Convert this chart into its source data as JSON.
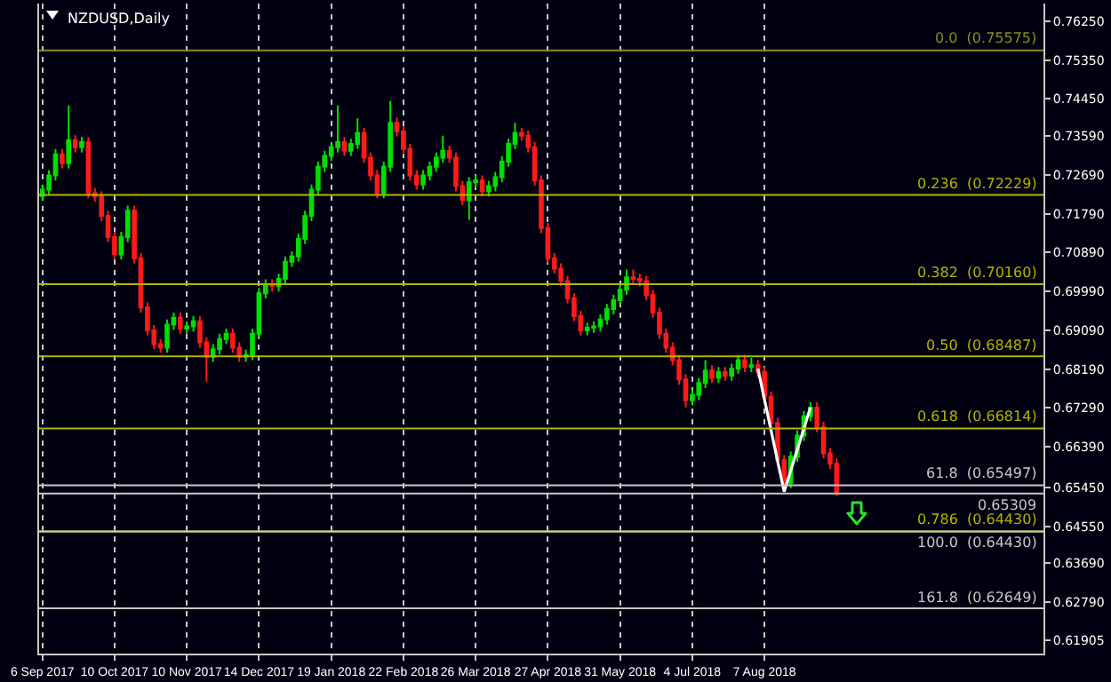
{
  "chart_data": {
    "type": "candlestick",
    "title": "NZDUSD,Daily",
    "categories": [
      "6 Sep 2017",
      null,
      null,
      null,
      null,
      null,
      null,
      null,
      null,
      null,
      null,
      "10 Oct 2017",
      null,
      null,
      null,
      null,
      null,
      null,
      null,
      null,
      null,
      null,
      "10 Nov 2017",
      null,
      null,
      null,
      null,
      null,
      null,
      null,
      null,
      null,
      null,
      "14 Dec 2017",
      null,
      null,
      null,
      null,
      null,
      null,
      null,
      null,
      null,
      null,
      "19 Jan 2018",
      null,
      null,
      null,
      null,
      null,
      null,
      null,
      null,
      null,
      null,
      "22 Feb 2018",
      null,
      null,
      null,
      null,
      null,
      null,
      null,
      null,
      null,
      null,
      "26 Mar 2018",
      null,
      null,
      null,
      null,
      null,
      null,
      null,
      null,
      null,
      null,
      "27 Apr 2018",
      null,
      null,
      null,
      null,
      null,
      null,
      null,
      null,
      null,
      null,
      "31 May 2018",
      null,
      null,
      null,
      null,
      null,
      null,
      null,
      null,
      null,
      null,
      "4 Jul 2018",
      null,
      null,
      null,
      null,
      null,
      null,
      null,
      null,
      null,
      null,
      "7 Aug 2018",
      null,
      null,
      null,
      null,
      null,
      null,
      null,
      null,
      null,
      null,
      null,
      null,
      null,
      null,
      null,
      null,
      null,
      null,
      null,
      null,
      null,
      null,
      null,
      null,
      null,
      null,
      null,
      null,
      null,
      null,
      null,
      null,
      null,
      null,
      null,
      null,
      null,
      null,
      null,
      null,
      null,
      null
    ],
    "ohlc": [
      [
        0.722,
        0.7247,
        0.7208,
        0.7235
      ],
      [
        0.7235,
        0.728,
        0.7223,
        0.7268
      ],
      [
        0.7268,
        0.7329,
        0.7256,
        0.7317
      ],
      [
        0.7317,
        0.7329,
        0.7284,
        0.7296
      ],
      [
        0.7296,
        0.743,
        0.7284,
        0.7349
      ],
      [
        0.7349,
        0.7361,
        0.7321,
        0.7333
      ],
      [
        0.7333,
        0.7357,
        0.7321,
        0.7345
      ],
      [
        0.7345,
        0.7357,
        0.7215,
        0.7227
      ],
      [
        0.7227,
        0.7239,
        0.7207,
        0.7219
      ],
      [
        0.7219,
        0.7231,
        0.7162,
        0.7174
      ],
      [
        0.7174,
        0.7186,
        0.7113,
        0.7125
      ],
      [
        0.7125,
        0.7137,
        0.7073,
        0.7085
      ],
      [
        0.7085,
        0.7137,
        0.7073,
        0.7125
      ],
      [
        0.7125,
        0.7198,
        0.7113,
        0.7186
      ],
      [
        0.7186,
        0.7198,
        0.7064,
        0.7076
      ],
      [
        0.7076,
        0.7088,
        0.695,
        0.6962
      ],
      [
        0.6962,
        0.6974,
        0.6897,
        0.6909
      ],
      [
        0.6909,
        0.6921,
        0.6865,
        0.6877
      ],
      [
        0.6877,
        0.6889,
        0.6857,
        0.6869
      ],
      [
        0.6869,
        0.6934,
        0.6857,
        0.6922
      ],
      [
        0.6922,
        0.695,
        0.691,
        0.6938
      ],
      [
        0.6938,
        0.695,
        0.6901,
        0.6913
      ],
      [
        0.6913,
        0.693,
        0.6901,
        0.6918
      ],
      [
        0.6918,
        0.6942,
        0.6906,
        0.693
      ],
      [
        0.693,
        0.6942,
        0.6869,
        0.6881
      ],
      [
        0.6881,
        0.6893,
        0.679,
        0.6848
      ],
      [
        0.6848,
        0.6877,
        0.6836,
        0.6865
      ],
      [
        0.6865,
        0.6901,
        0.6853,
        0.6889
      ],
      [
        0.6889,
        0.6913,
        0.6877,
        0.6901
      ],
      [
        0.6901,
        0.6913,
        0.6857,
        0.6869
      ],
      [
        0.6869,
        0.6881,
        0.6836,
        0.6848
      ],
      [
        0.6848,
        0.6864,
        0.6836,
        0.6852
      ],
      [
        0.6852,
        0.6913,
        0.684,
        0.6901
      ],
      [
        0.6901,
        0.7007,
        0.6889,
        0.6995
      ],
      [
        0.6995,
        0.7027,
        0.6983,
        0.7015
      ],
      [
        0.7015,
        0.7027,
        0.6999,
        0.7011
      ],
      [
        0.7011,
        0.704,
        0.6999,
        0.7028
      ],
      [
        0.7028,
        0.708,
        0.7016,
        0.7068
      ],
      [
        0.7068,
        0.7092,
        0.7056,
        0.708
      ],
      [
        0.708,
        0.7133,
        0.7068,
        0.7121
      ],
      [
        0.7121,
        0.7186,
        0.7109,
        0.7174
      ],
      [
        0.7174,
        0.7247,
        0.7162,
        0.7235
      ],
      [
        0.7235,
        0.73,
        0.7223,
        0.7288
      ],
      [
        0.7288,
        0.7325,
        0.7276,
        0.7313
      ],
      [
        0.7313,
        0.7345,
        0.7301,
        0.7333
      ],
      [
        0.7333,
        0.743,
        0.7321,
        0.7345
      ],
      [
        0.7345,
        0.7357,
        0.7313,
        0.7325
      ],
      [
        0.7325,
        0.7353,
        0.7313,
        0.7341
      ],
      [
        0.7341,
        0.74,
        0.7329,
        0.7366
      ],
      [
        0.7366,
        0.7378,
        0.7297,
        0.7309
      ],
      [
        0.7309,
        0.7321,
        0.7256,
        0.7268
      ],
      [
        0.7268,
        0.728,
        0.7215,
        0.7227
      ],
      [
        0.7227,
        0.73,
        0.7215,
        0.7288
      ],
      [
        0.7288,
        0.744,
        0.7276,
        0.739
      ],
      [
        0.739,
        0.7402,
        0.7358,
        0.737
      ],
      [
        0.737,
        0.7382,
        0.7317,
        0.7329
      ],
      [
        0.7329,
        0.7341,
        0.7256,
        0.7268
      ],
      [
        0.7268,
        0.728,
        0.7235,
        0.7247
      ],
      [
        0.7247,
        0.728,
        0.7235,
        0.7268
      ],
      [
        0.7268,
        0.73,
        0.7256,
        0.7288
      ],
      [
        0.7288,
        0.7321,
        0.7276,
        0.7309
      ],
      [
        0.7309,
        0.736,
        0.7297,
        0.7325
      ],
      [
        0.7325,
        0.7337,
        0.7297,
        0.7309
      ],
      [
        0.7309,
        0.7321,
        0.7231,
        0.7243
      ],
      [
        0.7243,
        0.7255,
        0.7199,
        0.7211
      ],
      [
        0.7211,
        0.7264,
        0.7165,
        0.7252
      ],
      [
        0.7252,
        0.7268,
        0.724,
        0.7256
      ],
      [
        0.7256,
        0.7268,
        0.7219,
        0.7231
      ],
      [
        0.7231,
        0.7255,
        0.7219,
        0.7243
      ],
      [
        0.7243,
        0.7276,
        0.7231,
        0.7264
      ],
      [
        0.7264,
        0.7312,
        0.7252,
        0.73
      ],
      [
        0.73,
        0.7353,
        0.7288,
        0.7341
      ],
      [
        0.7341,
        0.739,
        0.7329,
        0.7366
      ],
      [
        0.7366,
        0.7378,
        0.7348,
        0.736
      ],
      [
        0.736,
        0.7372,
        0.7321,
        0.7333
      ],
      [
        0.7333,
        0.7345,
        0.7244,
        0.7256
      ],
      [
        0.7256,
        0.7268,
        0.7134,
        0.7146
      ],
      [
        0.7146,
        0.7158,
        0.7064,
        0.7076
      ],
      [
        0.7076,
        0.7088,
        0.704,
        0.7052
      ],
      [
        0.7052,
        0.7064,
        0.7011,
        0.7023
      ],
      [
        0.7023,
        0.7035,
        0.6971,
        0.6983
      ],
      [
        0.6983,
        0.6995,
        0.693,
        0.6942
      ],
      [
        0.6942,
        0.6954,
        0.6897,
        0.6909
      ],
      [
        0.6909,
        0.6927,
        0.6897,
        0.6915
      ],
      [
        0.6915,
        0.693,
        0.6903,
        0.6918
      ],
      [
        0.6918,
        0.6946,
        0.6906,
        0.6934
      ],
      [
        0.6934,
        0.697,
        0.6922,
        0.6958
      ],
      [
        0.6958,
        0.6991,
        0.6946,
        0.6979
      ],
      [
        0.6979,
        0.7015,
        0.6967,
        0.7003
      ],
      [
        0.7003,
        0.705,
        0.6991,
        0.7032
      ],
      [
        0.7032,
        0.705,
        0.7016,
        0.7028
      ],
      [
        0.7028,
        0.704,
        0.7011,
        0.7023
      ],
      [
        0.7023,
        0.7035,
        0.6979,
        0.6991
      ],
      [
        0.6991,
        0.7003,
        0.6938,
        0.695
      ],
      [
        0.695,
        0.6962,
        0.6889,
        0.6901
      ],
      [
        0.6901,
        0.6913,
        0.6857,
        0.6869
      ],
      [
        0.6869,
        0.6881,
        0.6828,
        0.684
      ],
      [
        0.684,
        0.6852,
        0.6783,
        0.6795
      ],
      [
        0.6795,
        0.6807,
        0.673,
        0.6747
      ],
      [
        0.6747,
        0.6771,
        0.6735,
        0.6759
      ],
      [
        0.6759,
        0.6799,
        0.6747,
        0.6787
      ],
      [
        0.6787,
        0.684,
        0.6775,
        0.6816
      ],
      [
        0.6816,
        0.6828,
        0.6787,
        0.6799
      ],
      [
        0.6799,
        0.6824,
        0.6787,
        0.6812
      ],
      [
        0.6812,
        0.6824,
        0.6792,
        0.6804
      ],
      [
        0.6804,
        0.6832,
        0.6792,
        0.682
      ],
      [
        0.682,
        0.6852,
        0.6808,
        0.684
      ],
      [
        0.684,
        0.6852,
        0.6812,
        0.6824
      ],
      [
        0.6824,
        0.6845,
        0.6812,
        0.6828
      ],
      [
        0.6828,
        0.684,
        0.68,
        0.6812
      ],
      [
        0.6812,
        0.6824,
        0.6743,
        0.6755
      ],
      [
        0.6755,
        0.6767,
        0.6682,
        0.6694
      ],
      [
        0.6694,
        0.6706,
        0.6596,
        0.6608
      ],
      [
        0.6608,
        0.662,
        0.6543,
        0.6555
      ],
      [
        0.6555,
        0.6628,
        0.6543,
        0.6616
      ],
      [
        0.6616,
        0.6677,
        0.6604,
        0.6665
      ],
      [
        0.6665,
        0.6722,
        0.6653,
        0.671
      ],
      [
        0.671,
        0.6742,
        0.6698,
        0.673
      ],
      [
        0.673,
        0.6742,
        0.6673,
        0.6685
      ],
      [
        0.6685,
        0.6697,
        0.6612,
        0.6624
      ],
      [
        0.6624,
        0.6636,
        0.6588,
        0.66
      ],
      [
        0.66,
        0.6612,
        0.6525,
        0.6531
      ],
      null,
      null,
      null,
      null,
      null,
      null,
      null,
      null,
      null,
      null,
      null,
      null,
      null,
      null,
      null,
      null,
      null,
      null,
      null,
      null,
      null,
      null,
      null,
      null,
      null,
      null,
      null,
      null,
      null,
      null,
      null
    ],
    "colors": [
      "#00e000",
      "#00e000",
      "#00e000",
      "#ff1a1a",
      "#00e000",
      "#ff1a1a",
      "#00e000",
      "#ff1a1a",
      "#ff1a1a",
      "#ff1a1a",
      "#ff1a1a",
      "#ff1a1a",
      "#00e000",
      "#00e000",
      "#ff1a1a",
      "#ff1a1a",
      "#ff1a1a",
      "#ff1a1a",
      "#ff1a1a",
      "#00e000",
      "#00e000",
      "#ff1a1a",
      "#00e000",
      "#00e000",
      "#ff1a1a",
      "#ff1a1a",
      "#00e000",
      "#00e000",
      "#00e000",
      "#ff1a1a",
      "#ff1a1a",
      "#00e000",
      "#00e000",
      "#00e000",
      "#00e000",
      "#ff1a1a",
      "#00e000",
      "#00e000",
      "#00e000",
      "#00e000",
      "#00e000",
      "#00e000",
      "#00e000",
      "#00e000",
      "#00e000",
      "#00e000",
      "#ff1a1a",
      "#00e000",
      "#00e000",
      "#ff1a1a",
      "#ff1a1a",
      "#ff1a1a",
      "#00e000",
      "#00e000",
      "#ff1a1a",
      "#ff1a1a",
      "#ff1a1a",
      "#ff1a1a",
      "#00e000",
      "#00e000",
      "#00e000",
      "#00e000",
      "#ff1a1a",
      "#ff1a1a",
      "#ff1a1a",
      "#00e000",
      "#00e000",
      "#ff1a1a",
      "#00e000",
      "#00e000",
      "#00e000",
      "#00e000",
      "#00e000",
      "#ff1a1a",
      "#ff1a1a",
      "#ff1a1a",
      "#ff1a1a",
      "#ff1a1a",
      "#ff1a1a",
      "#ff1a1a",
      "#ff1a1a",
      "#ff1a1a",
      "#ff1a1a",
      "#00e000",
      "#00e000",
      "#00e000",
      "#00e000",
      "#00e000",
      "#00e000",
      "#00e000",
      "#ff1a1a",
      "#ff1a1a",
      "#ff1a1a",
      "#ff1a1a",
      "#ff1a1a",
      "#ff1a1a",
      "#ff1a1a",
      "#ff1a1a",
      "#ff1a1a",
      "#00e000",
      "#00e000",
      "#00e000",
      "#ff1a1a",
      "#00e000",
      "#ff1a1a",
      "#00e000",
      "#00e000",
      "#ff1a1a",
      "#00e000",
      "#ff1a1a",
      "#ff1a1a",
      "#ff1a1a",
      "#ff1a1a",
      "#ff1a1a",
      "#00e000",
      "#00e000",
      "#00e000",
      "#00e000",
      "#ff1a1a",
      "#ff1a1a",
      "#ff1a1a",
      "#ff1a1a",
      null,
      null,
      null,
      null,
      null,
      null,
      null,
      null,
      null,
      null,
      null,
      null,
      null,
      null,
      null,
      null,
      null,
      null,
      null,
      null,
      null,
      null,
      null,
      null,
      null,
      null,
      null,
      null,
      null,
      null,
      null
    ],
    "series": [
      {
        "type": "line",
        "color": "#ffffff",
        "values": [
          null,
          null,
          null,
          null,
          null,
          null,
          null,
          null,
          null,
          null,
          null,
          null,
          null,
          null,
          null,
          null,
          null,
          null,
          null,
          null,
          null,
          null,
          null,
          null,
          null,
          null,
          null,
          null,
          null,
          null,
          null,
          null,
          null,
          null,
          null,
          null,
          null,
          null,
          null,
          null,
          null,
          null,
          null,
          null,
          null,
          null,
          null,
          null,
          null,
          null,
          null,
          null,
          null,
          null,
          null,
          null,
          null,
          null,
          null,
          null,
          null,
          null,
          null,
          null,
          null,
          null,
          null,
          null,
          null,
          null,
          null,
          null,
          null,
          null,
          null,
          null,
          null,
          null,
          null,
          null,
          null,
          null,
          null,
          null,
          null,
          null,
          null,
          null,
          null,
          null,
          null,
          null,
          null,
          null,
          null,
          null,
          null,
          null,
          null,
          null,
          null,
          null,
          null,
          null,
          null,
          null,
          null,
          null,
          null,
          0.682,
          null,
          null,
          null,
          0.6535,
          null,
          null,
          null,
          0.673,
          null,
          null,
          null,
          null,
          null,
          null,
          null,
          null,
          null,
          null,
          null,
          null,
          null,
          null,
          null,
          null,
          null,
          null,
          null,
          null,
          null,
          null,
          null,
          null,
          null,
          null,
          null,
          null,
          null,
          null,
          null,
          null,
          null,
          null,
          null
        ]
      }
    ],
    "ylim": [
      0.616,
      0.7666
    ],
    "yticks": [
      {
        "value": 0.7625,
        "label": "0.76250"
      },
      {
        "value": 0.7535,
        "label": "0.75350"
      },
      {
        "value": 0.7445,
        "label": "0.74450"
      },
      {
        "value": 0.7359,
        "label": "0.73590"
      },
      {
        "value": 0.7269,
        "label": "0.72690"
      },
      {
        "value": 0.7179,
        "label": "0.71790"
      },
      {
        "value": 0.7089,
        "label": "0.70890"
      },
      {
        "value": 0.6999,
        "label": "0.69990"
      },
      {
        "value": 0.6909,
        "label": "0.69090"
      },
      {
        "value": 0.6819,
        "label": "0.68190"
      },
      {
        "value": 0.6729,
        "label": "0.67290"
      },
      {
        "value": 0.6639,
        "label": "0.66390"
      },
      {
        "value": 0.6545,
        "label": "0.65450"
      },
      {
        "value": 0.6455,
        "label": "0.64550"
      },
      {
        "value": 0.6369,
        "label": "0.63690"
      },
      {
        "value": 0.6279,
        "label": "0.62790"
      },
      {
        "value": 0.61905,
        "label": "0.61905"
      }
    ],
    "ref_lines": [
      {
        "axis": "y",
        "value": 0.75575,
        "label": "0.0  (0.75575)",
        "color": "#8c8c1e"
      },
      {
        "axis": "y",
        "value": 0.72229,
        "label": "0.236  (0.72229)",
        "color": "#b4b400"
      },
      {
        "axis": "y",
        "value": 0.7016,
        "label": "0.382  (0.70160)",
        "color": "#b4b400"
      },
      {
        "axis": "y",
        "value": 0.68487,
        "label": "0.50  (0.68487)",
        "color": "#b4b400"
      },
      {
        "axis": "y",
        "value": 0.66814,
        "label": "0.618  (0.66814)",
        "color": "#b4b400"
      },
      {
        "axis": "y",
        "value": 0.65497,
        "label": "61.8  (0.65497)",
        "color": "#c8c8c8"
      },
      {
        "axis": "y",
        "value": 0.6443,
        "label": "0.786  (0.64430)",
        "color": "#b4b400"
      },
      {
        "axis": "y",
        "value": 0.6443,
        "label": "100.0  (0.64430)",
        "color": "#c8c8c8"
      },
      {
        "axis": "y",
        "value": 0.62649,
        "label": "161.8  (0.62649)",
        "color": "#c8c8c8"
      },
      {
        "axis": "y",
        "value": 0.65309,
        "label": "0.65309",
        "color": "#c8c8c8"
      }
    ],
    "grid": "x"
  }
}
